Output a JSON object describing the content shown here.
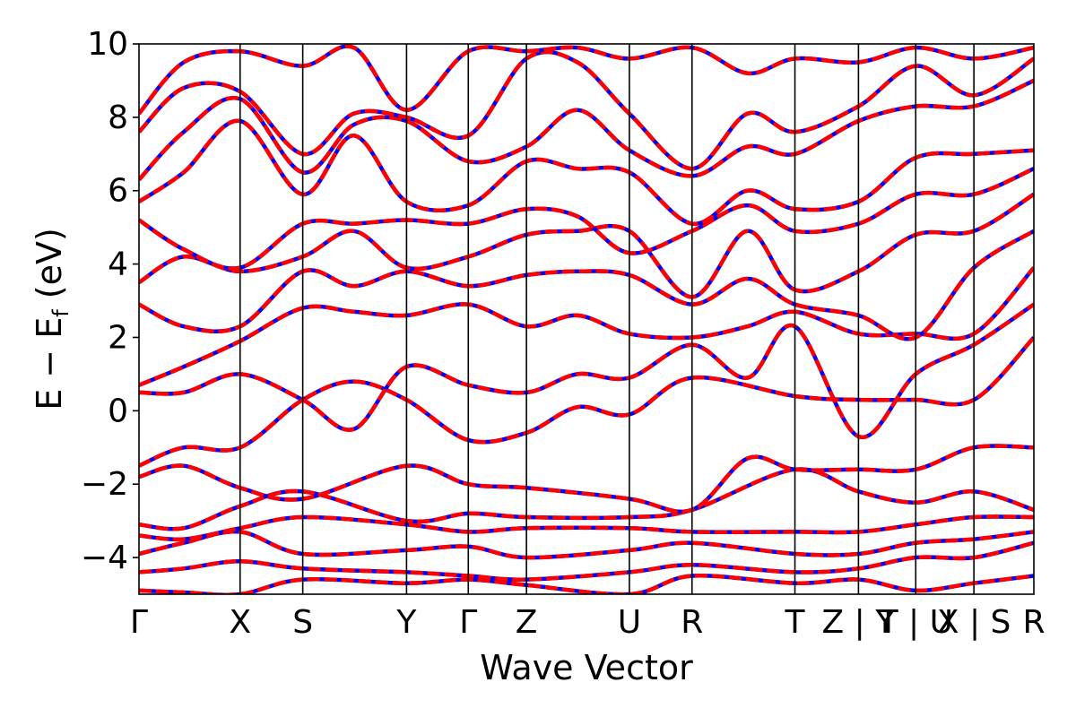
{
  "chart_data": {
    "type": "line",
    "title": "",
    "xlabel": "Wave Vector",
    "ylabel_main": "E − E",
    "ylabel_sub": "f",
    "ylabel_unit": " (eV)",
    "ylim": [
      -5,
      10
    ],
    "yticks": [
      {
        "value": 10,
        "label": "10"
      },
      {
        "value": 8,
        "label": "8"
      },
      {
        "value": 6,
        "label": "6"
      },
      {
        "value": 4,
        "label": "4"
      },
      {
        "value": 2,
        "label": "2"
      },
      {
        "value": 0,
        "label": "0"
      },
      {
        "value": -2,
        "label": "−2"
      },
      {
        "value": -4,
        "label": "−4"
      }
    ],
    "kpath": [
      {
        "label": "Γ",
        "k": 0.0
      },
      {
        "label": "X",
        "k": 0.113
      },
      {
        "label": "S",
        "k": 0.183
      },
      {
        "label": "Y",
        "k": 0.299
      },
      {
        "label": "Γ",
        "k": 0.368
      },
      {
        "label": "Z",
        "k": 0.433
      },
      {
        "label": "U",
        "k": 0.548
      },
      {
        "label": "R",
        "k": 0.618
      },
      {
        "label": "T",
        "k": 0.733
      },
      {
        "label": "Z | Y",
        "k": 0.804
      },
      {
        "label": "T | U",
        "k": 0.868
      },
      {
        "label": "X | S",
        "k": 0.933
      },
      {
        "label": "R",
        "k": 1.0
      }
    ],
    "series_styles": [
      {
        "role": "reference",
        "color": "#0000ff",
        "dash": "solid"
      },
      {
        "role": "fit",
        "color": "#ff0000",
        "dash": "dashed"
      }
    ],
    "bands": [
      {
        "points": [
          [
            0.0,
            -4.9
          ],
          [
            0.05,
            -4.95
          ],
          [
            0.113,
            -5.0
          ],
          [
            0.183,
            -4.6
          ],
          [
            0.299,
            -4.7
          ],
          [
            0.368,
            -4.6
          ],
          [
            0.433,
            -4.75
          ],
          [
            0.548,
            -5.0
          ],
          [
            0.618,
            -4.5
          ],
          [
            0.733,
            -4.7
          ],
          [
            0.804,
            -4.6
          ],
          [
            0.868,
            -4.9
          ],
          [
            0.933,
            -4.7
          ],
          [
            1.0,
            -4.5
          ]
        ]
      },
      {
        "points": [
          [
            0.0,
            -4.4
          ],
          [
            0.05,
            -4.3
          ],
          [
            0.113,
            -4.1
          ],
          [
            0.183,
            -4.3
          ],
          [
            0.299,
            -4.4
          ],
          [
            0.368,
            -4.5
          ],
          [
            0.433,
            -4.6
          ],
          [
            0.548,
            -4.4
          ],
          [
            0.618,
            -4.2
          ],
          [
            0.733,
            -4.4
          ],
          [
            0.804,
            -4.3
          ],
          [
            0.868,
            -4.0
          ],
          [
            0.933,
            -4.0
          ],
          [
            1.0,
            -3.6
          ]
        ]
      },
      {
        "points": [
          [
            0.0,
            -3.9
          ],
          [
            0.05,
            -3.6
          ],
          [
            0.113,
            -3.3
          ],
          [
            0.183,
            -3.9
          ],
          [
            0.299,
            -3.8
          ],
          [
            0.368,
            -3.7
          ],
          [
            0.433,
            -4.0
          ],
          [
            0.548,
            -3.8
          ],
          [
            0.618,
            -3.6
          ],
          [
            0.733,
            -3.9
          ],
          [
            0.804,
            -3.9
          ],
          [
            0.868,
            -3.6
          ],
          [
            0.933,
            -3.5
          ],
          [
            1.0,
            -3.3
          ]
        ]
      },
      {
        "points": [
          [
            0.0,
            -3.4
          ],
          [
            0.05,
            -3.5
          ],
          [
            0.113,
            -3.2
          ],
          [
            0.183,
            -2.9
          ],
          [
            0.299,
            -3.1
          ],
          [
            0.368,
            -3.3
          ],
          [
            0.433,
            -3.2
          ],
          [
            0.548,
            -3.2
          ],
          [
            0.618,
            -3.3
          ],
          [
            0.733,
            -3.3
          ],
          [
            0.804,
            -3.3
          ],
          [
            0.868,
            -3.1
          ],
          [
            0.933,
            -2.9
          ],
          [
            1.0,
            -2.9
          ]
        ]
      },
      {
        "points": [
          [
            0.0,
            -3.1
          ],
          [
            0.05,
            -3.2
          ],
          [
            0.113,
            -2.6
          ],
          [
            0.183,
            -2.2
          ],
          [
            0.299,
            -3.0
          ],
          [
            0.368,
            -2.8
          ],
          [
            0.433,
            -2.9
          ],
          [
            0.548,
            -2.9
          ],
          [
            0.618,
            -2.7
          ],
          [
            0.733,
            -1.6
          ],
          [
            0.804,
            -2.2
          ],
          [
            0.868,
            -2.5
          ],
          [
            0.933,
            -2.2
          ],
          [
            1.0,
            -2.7
          ]
        ]
      },
      {
        "points": [
          [
            0.0,
            -1.8
          ],
          [
            0.05,
            -1.5
          ],
          [
            0.113,
            -2.1
          ],
          [
            0.183,
            -2.4
          ],
          [
            0.299,
            -1.5
          ],
          [
            0.368,
            -2.0
          ],
          [
            0.433,
            -2.1
          ],
          [
            0.548,
            -2.4
          ],
          [
            0.618,
            -2.7
          ],
          [
            0.68,
            -1.3
          ],
          [
            0.733,
            -1.6
          ],
          [
            0.804,
            -1.6
          ],
          [
            0.868,
            -1.6
          ],
          [
            0.933,
            -1.0
          ],
          [
            1.0,
            -1.0
          ]
        ]
      },
      {
        "points": [
          [
            0.0,
            -1.5
          ],
          [
            0.05,
            -1.0
          ],
          [
            0.113,
            -1.0
          ],
          [
            0.183,
            0.3
          ],
          [
            0.24,
            0.8
          ],
          [
            0.299,
            0.3
          ],
          [
            0.368,
            -0.8
          ],
          [
            0.433,
            -0.6
          ],
          [
            0.49,
            0.1
          ],
          [
            0.548,
            -0.1
          ],
          [
            0.618,
            0.9
          ],
          [
            0.733,
            0.4
          ],
          [
            0.804,
            0.3
          ],
          [
            0.868,
            0.3
          ],
          [
            0.933,
            0.3
          ],
          [
            1.0,
            2.0
          ]
        ]
      },
      {
        "points": [
          [
            0.0,
            0.5
          ],
          [
            0.05,
            0.5
          ],
          [
            0.113,
            1.0
          ],
          [
            0.183,
            0.3
          ],
          [
            0.24,
            -0.5
          ],
          [
            0.299,
            1.2
          ],
          [
            0.368,
            0.7
          ],
          [
            0.433,
            0.5
          ],
          [
            0.49,
            1.0
          ],
          [
            0.548,
            0.9
          ],
          [
            0.618,
            1.8
          ],
          [
            0.68,
            0.9
          ],
          [
            0.733,
            2.3
          ],
          [
            0.804,
            -0.7
          ],
          [
            0.868,
            1.0
          ],
          [
            0.933,
            1.8
          ],
          [
            1.0,
            2.9
          ]
        ]
      },
      {
        "points": [
          [
            0.0,
            0.7
          ],
          [
            0.05,
            1.2
          ],
          [
            0.113,
            1.9
          ],
          [
            0.183,
            2.8
          ],
          [
            0.24,
            2.7
          ],
          [
            0.299,
            2.6
          ],
          [
            0.368,
            2.9
          ],
          [
            0.433,
            2.3
          ],
          [
            0.49,
            2.6
          ],
          [
            0.548,
            2.1
          ],
          [
            0.618,
            2.0
          ],
          [
            0.68,
            2.3
          ],
          [
            0.733,
            2.7
          ],
          [
            0.804,
            2.1
          ],
          [
            0.868,
            2.1
          ],
          [
            0.933,
            2.1
          ],
          [
            1.0,
            3.9
          ]
        ]
      },
      {
        "points": [
          [
            0.0,
            2.9
          ],
          [
            0.05,
            2.3
          ],
          [
            0.113,
            2.3
          ],
          [
            0.183,
            3.8
          ],
          [
            0.24,
            3.4
          ],
          [
            0.299,
            3.8
          ],
          [
            0.368,
            3.4
          ],
          [
            0.433,
            3.7
          ],
          [
            0.49,
            3.8
          ],
          [
            0.548,
            3.7
          ],
          [
            0.618,
            2.9
          ],
          [
            0.68,
            3.6
          ],
          [
            0.733,
            2.9
          ],
          [
            0.804,
            2.6
          ],
          [
            0.868,
            2.0
          ],
          [
            0.933,
            3.9
          ],
          [
            1.0,
            4.9
          ]
        ]
      },
      {
        "points": [
          [
            0.0,
            3.5
          ],
          [
            0.05,
            4.2
          ],
          [
            0.113,
            3.8
          ],
          [
            0.183,
            4.2
          ],
          [
            0.24,
            4.9
          ],
          [
            0.299,
            3.9
          ],
          [
            0.368,
            4.2
          ],
          [
            0.433,
            4.8
          ],
          [
            0.49,
            4.9
          ],
          [
            0.548,
            4.9
          ],
          [
            0.618,
            3.1
          ],
          [
            0.68,
            4.9
          ],
          [
            0.733,
            3.3
          ],
          [
            0.804,
            3.8
          ],
          [
            0.868,
            4.8
          ],
          [
            0.933,
            4.9
          ],
          [
            1.0,
            5.9
          ]
        ]
      },
      {
        "points": [
          [
            0.0,
            5.2
          ],
          [
            0.05,
            4.4
          ],
          [
            0.113,
            3.9
          ],
          [
            0.183,
            5.1
          ],
          [
            0.24,
            5.1
          ],
          [
            0.299,
            5.2
          ],
          [
            0.368,
            5.1
          ],
          [
            0.433,
            5.5
          ],
          [
            0.49,
            5.3
          ],
          [
            0.548,
            4.3
          ],
          [
            0.618,
            4.9
          ],
          [
            0.68,
            5.6
          ],
          [
            0.733,
            4.9
          ],
          [
            0.804,
            5.1
          ],
          [
            0.868,
            5.9
          ],
          [
            0.933,
            5.9
          ],
          [
            1.0,
            6.6
          ]
        ]
      },
      {
        "points": [
          [
            0.0,
            5.7
          ],
          [
            0.05,
            6.5
          ],
          [
            0.113,
            7.9
          ],
          [
            0.183,
            5.9
          ],
          [
            0.24,
            7.5
          ],
          [
            0.299,
            5.7
          ],
          [
            0.368,
            5.6
          ],
          [
            0.433,
            6.8
          ],
          [
            0.49,
            6.6
          ],
          [
            0.548,
            6.5
          ],
          [
            0.618,
            5.1
          ],
          [
            0.68,
            6.0
          ],
          [
            0.733,
            5.5
          ],
          [
            0.804,
            5.7
          ],
          [
            0.868,
            6.9
          ],
          [
            0.933,
            7.0
          ],
          [
            1.0,
            7.1
          ]
        ]
      },
      {
        "points": [
          [
            0.0,
            6.3
          ],
          [
            0.05,
            7.6
          ],
          [
            0.113,
            8.5
          ],
          [
            0.183,
            6.5
          ],
          [
            0.24,
            7.8
          ],
          [
            0.299,
            7.9
          ],
          [
            0.368,
            6.8
          ],
          [
            0.433,
            7.2
          ],
          [
            0.49,
            8.2
          ],
          [
            0.548,
            7.1
          ],
          [
            0.618,
            6.4
          ],
          [
            0.68,
            7.2
          ],
          [
            0.733,
            7.0
          ],
          [
            0.804,
            7.9
          ],
          [
            0.868,
            8.3
          ],
          [
            0.933,
            8.3
          ],
          [
            1.0,
            9.0
          ]
        ]
      },
      {
        "points": [
          [
            0.0,
            7.6
          ],
          [
            0.05,
            8.8
          ],
          [
            0.113,
            8.7
          ],
          [
            0.183,
            7.0
          ],
          [
            0.24,
            8.1
          ],
          [
            0.299,
            8.0
          ],
          [
            0.368,
            7.5
          ],
          [
            0.433,
            9.6
          ],
          [
            0.49,
            9.5
          ],
          [
            0.548,
            8.1
          ],
          [
            0.618,
            6.6
          ],
          [
            0.68,
            8.1
          ],
          [
            0.733,
            7.6
          ],
          [
            0.804,
            8.3
          ],
          [
            0.868,
            9.4
          ],
          [
            0.933,
            8.6
          ],
          [
            1.0,
            9.6
          ]
        ]
      },
      {
        "points": [
          [
            0.0,
            8.1
          ],
          [
            0.05,
            9.5
          ],
          [
            0.113,
            9.8
          ],
          [
            0.183,
            9.4
          ],
          [
            0.24,
            9.9
          ],
          [
            0.299,
            8.2
          ],
          [
            0.368,
            9.8
          ],
          [
            0.433,
            9.8
          ],
          [
            0.49,
            9.9
          ],
          [
            0.548,
            9.6
          ],
          [
            0.618,
            9.9
          ],
          [
            0.68,
            9.2
          ],
          [
            0.733,
            9.6
          ],
          [
            0.804,
            9.5
          ],
          [
            0.868,
            9.9
          ],
          [
            0.933,
            9.6
          ],
          [
            1.0,
            9.9
          ]
        ]
      }
    ]
  }
}
